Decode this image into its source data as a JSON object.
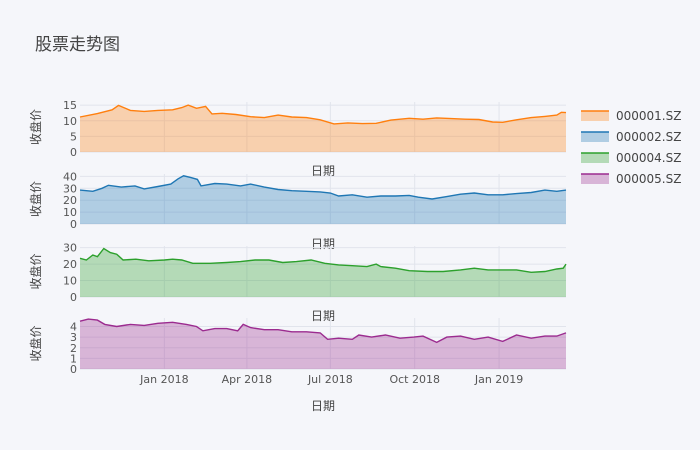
{
  "chart_data": {
    "type": "area",
    "title": "股票走势图",
    "legend_position": "right",
    "grid": true,
    "x_date_range": [
      "2017-10-01",
      "2019-03-15"
    ],
    "x_tick_labels": [
      "Jan 2018",
      "Apr 2018",
      "Jul 2018",
      "Oct 2018",
      "Jan 2019"
    ],
    "x_tick_dates": [
      "2018-01-01",
      "2018-04-01",
      "2018-07-01",
      "2018-10-01",
      "2019-01-01"
    ],
    "subplots": [
      {
        "name": "000001.SZ",
        "xlabel": "日期",
        "ylabel": "收盘价",
        "color": "#ff7f0e",
        "ylim": [
          0,
          16
        ],
        "y_ticks": [
          0,
          5,
          10,
          15
        ],
        "points": [
          [
            "2017-10-01",
            11.2
          ],
          [
            "2017-10-20",
            12.3
          ],
          [
            "2017-11-05",
            13.5
          ],
          [
            "2017-11-12",
            14.9
          ],
          [
            "2017-11-25",
            13.3
          ],
          [
            "2017-12-10",
            13.0
          ],
          [
            "2017-12-25",
            13.3
          ],
          [
            "2018-01-10",
            13.5
          ],
          [
            "2018-01-20",
            14.2
          ],
          [
            "2018-01-27",
            15.0
          ],
          [
            "2018-02-05",
            14.0
          ],
          [
            "2018-02-15",
            14.6
          ],
          [
            "2018-02-22",
            12.2
          ],
          [
            "2018-03-05",
            12.4
          ],
          [
            "2018-03-20",
            12.0
          ],
          [
            "2018-04-05",
            11.3
          ],
          [
            "2018-04-20",
            11.0
          ],
          [
            "2018-05-05",
            11.8
          ],
          [
            "2018-05-20",
            11.2
          ],
          [
            "2018-06-05",
            11.0
          ],
          [
            "2018-06-20",
            10.3
          ],
          [
            "2018-07-05",
            9.0
          ],
          [
            "2018-07-20",
            9.3
          ],
          [
            "2018-08-05",
            9.1
          ],
          [
            "2018-08-20",
            9.2
          ],
          [
            "2018-09-05",
            10.2
          ],
          [
            "2018-09-25",
            10.8
          ],
          [
            "2018-10-10",
            10.5
          ],
          [
            "2018-10-25",
            10.9
          ],
          [
            "2018-11-10",
            10.7
          ],
          [
            "2018-11-25",
            10.5
          ],
          [
            "2018-12-10",
            10.4
          ],
          [
            "2018-12-25",
            9.6
          ],
          [
            "2019-01-05",
            9.5
          ],
          [
            "2019-01-20",
            10.3
          ],
          [
            "2019-02-05",
            11.0
          ],
          [
            "2019-02-20",
            11.4
          ],
          [
            "2019-03-05",
            11.8
          ],
          [
            "2019-03-10",
            12.7
          ],
          [
            "2019-03-15",
            12.6
          ]
        ]
      },
      {
        "name": "000002.SZ",
        "xlabel": "日期",
        "ylabel": "收盘价",
        "color": "#1f77b4",
        "ylim": [
          0,
          42
        ],
        "y_ticks": [
          0,
          10,
          20,
          30,
          40
        ],
        "points": [
          [
            "2017-10-01",
            28.5
          ],
          [
            "2017-10-15",
            27.5
          ],
          [
            "2017-10-25",
            30.0
          ],
          [
            "2017-11-01",
            32.5
          ],
          [
            "2017-11-15",
            31.0
          ],
          [
            "2017-11-30",
            32.0
          ],
          [
            "2017-12-10",
            29.5
          ],
          [
            "2017-12-25",
            31.5
          ],
          [
            "2018-01-08",
            33.5
          ],
          [
            "2018-01-16",
            38.0
          ],
          [
            "2018-01-22",
            40.5
          ],
          [
            "2018-01-30",
            39.0
          ],
          [
            "2018-02-06",
            37.5
          ],
          [
            "2018-02-10",
            32.0
          ],
          [
            "2018-02-25",
            34.0
          ],
          [
            "2018-03-10",
            33.5
          ],
          [
            "2018-03-25",
            32.0
          ],
          [
            "2018-04-05",
            33.5
          ],
          [
            "2018-04-20",
            31.0
          ],
          [
            "2018-05-05",
            29.0
          ],
          [
            "2018-05-20",
            28.0
          ],
          [
            "2018-06-05",
            27.5
          ],
          [
            "2018-06-20",
            27.0
          ],
          [
            "2018-07-01",
            26.0
          ],
          [
            "2018-07-10",
            23.5
          ],
          [
            "2018-07-25",
            24.5
          ],
          [
            "2018-08-10",
            22.5
          ],
          [
            "2018-08-25",
            23.5
          ],
          [
            "2018-09-10",
            23.5
          ],
          [
            "2018-09-25",
            24.0
          ],
          [
            "2018-10-05",
            22.5
          ],
          [
            "2018-10-20",
            21.0
          ],
          [
            "2018-11-05",
            23.0
          ],
          [
            "2018-11-20",
            25.0
          ],
          [
            "2018-12-05",
            26.0
          ],
          [
            "2018-12-20",
            24.5
          ],
          [
            "2019-01-05",
            24.5
          ],
          [
            "2019-01-20",
            25.5
          ],
          [
            "2019-02-05",
            26.5
          ],
          [
            "2019-02-20",
            28.5
          ],
          [
            "2019-03-05",
            27.5
          ],
          [
            "2019-03-15",
            28.5
          ]
        ]
      },
      {
        "name": "000004.SZ",
        "xlabel": "日期",
        "ylabel": "收盘价",
        "color": "#2ca02c",
        "ylim": [
          0,
          31
        ],
        "y_ticks": [
          0,
          10,
          20,
          30
        ],
        "points": [
          [
            "2017-10-01",
            23.5
          ],
          [
            "2017-10-08",
            22.5
          ],
          [
            "2017-10-15",
            25.5
          ],
          [
            "2017-10-20",
            24.5
          ],
          [
            "2017-10-27",
            29.5
          ],
          [
            "2017-11-03",
            27.0
          ],
          [
            "2017-11-10",
            26.0
          ],
          [
            "2017-11-17",
            22.5
          ],
          [
            "2017-12-01",
            23.0
          ],
          [
            "2017-12-15",
            22.0
          ],
          [
            "2018-01-01",
            22.5
          ],
          [
            "2018-01-10",
            23.0
          ],
          [
            "2018-01-20",
            22.5
          ],
          [
            "2018-02-01",
            20.5
          ],
          [
            "2018-02-20",
            20.5
          ],
          [
            "2018-03-10",
            21.0
          ],
          [
            "2018-03-25",
            21.5
          ],
          [
            "2018-04-10",
            22.5
          ],
          [
            "2018-04-25",
            22.5
          ],
          [
            "2018-05-10",
            21.0
          ],
          [
            "2018-05-25",
            21.5
          ],
          [
            "2018-06-10",
            22.5
          ],
          [
            "2018-06-25",
            20.5
          ],
          [
            "2018-07-10",
            19.5
          ],
          [
            "2018-07-25",
            19.0
          ],
          [
            "2018-08-10",
            18.5
          ],
          [
            "2018-08-20",
            20.0
          ],
          [
            "2018-08-25",
            18.5
          ],
          [
            "2018-09-10",
            17.5
          ],
          [
            "2018-09-25",
            16.0
          ],
          [
            "2018-10-15",
            15.5
          ],
          [
            "2018-11-01",
            15.5
          ],
          [
            "2018-11-20",
            16.5
          ],
          [
            "2018-12-05",
            17.5
          ],
          [
            "2018-12-20",
            16.5
          ],
          [
            "2019-01-05",
            16.5
          ],
          [
            "2019-01-20",
            16.5
          ],
          [
            "2019-02-05",
            15.0
          ],
          [
            "2019-02-20",
            15.5
          ],
          [
            "2019-03-05",
            17.0
          ],
          [
            "2019-03-12",
            17.5
          ],
          [
            "2019-03-15",
            20.0
          ]
        ]
      },
      {
        "name": "000005.SZ",
        "xlabel": "日期",
        "ylabel": "收盘价",
        "color": "#9b2b8f",
        "ylim": [
          0,
          4.8
        ],
        "y_ticks": [
          0,
          1,
          2,
          3,
          4
        ],
        "points": [
          [
            "2017-10-01",
            4.5
          ],
          [
            "2017-10-10",
            4.7
          ],
          [
            "2017-10-20",
            4.6
          ],
          [
            "2017-10-28",
            4.2
          ],
          [
            "2017-11-10",
            4.0
          ],
          [
            "2017-11-25",
            4.2
          ],
          [
            "2017-12-10",
            4.1
          ],
          [
            "2017-12-25",
            4.3
          ],
          [
            "2018-01-10",
            4.4
          ],
          [
            "2018-01-25",
            4.2
          ],
          [
            "2018-02-05",
            4.0
          ],
          [
            "2018-02-12",
            3.6
          ],
          [
            "2018-02-25",
            3.8
          ],
          [
            "2018-03-10",
            3.8
          ],
          [
            "2018-03-22",
            3.6
          ],
          [
            "2018-03-28",
            4.2
          ],
          [
            "2018-04-05",
            3.9
          ],
          [
            "2018-04-20",
            3.7
          ],
          [
            "2018-05-05",
            3.7
          ],
          [
            "2018-05-20",
            3.5
          ],
          [
            "2018-06-05",
            3.5
          ],
          [
            "2018-06-20",
            3.4
          ],
          [
            "2018-06-28",
            2.8
          ],
          [
            "2018-07-10",
            2.9
          ],
          [
            "2018-07-25",
            2.8
          ],
          [
            "2018-08-01",
            3.2
          ],
          [
            "2018-08-15",
            3.0
          ],
          [
            "2018-08-30",
            3.2
          ],
          [
            "2018-09-15",
            2.9
          ],
          [
            "2018-09-30",
            3.0
          ],
          [
            "2018-10-10",
            3.1
          ],
          [
            "2018-10-25",
            2.5
          ],
          [
            "2018-11-05",
            3.0
          ],
          [
            "2018-11-20",
            3.1
          ],
          [
            "2018-12-05",
            2.8
          ],
          [
            "2018-12-20",
            3.0
          ],
          [
            "2019-01-05",
            2.6
          ],
          [
            "2019-01-20",
            3.2
          ],
          [
            "2019-02-05",
            2.9
          ],
          [
            "2019-02-20",
            3.1
          ],
          [
            "2019-03-05",
            3.1
          ],
          [
            "2019-03-15",
            3.4
          ]
        ]
      }
    ]
  }
}
